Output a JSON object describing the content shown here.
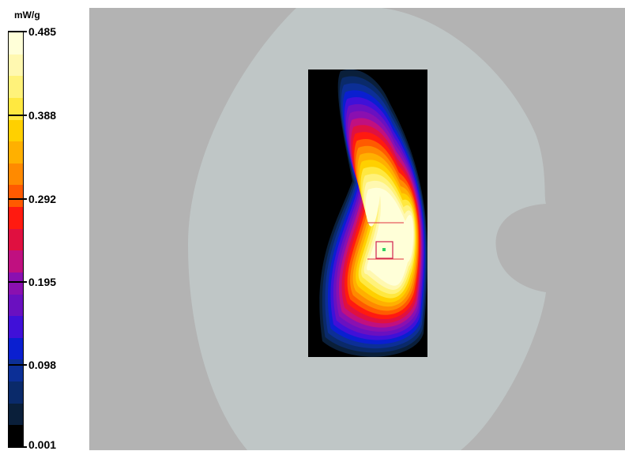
{
  "chart_data": {
    "type": "heatmap",
    "unit": "mW/g",
    "colorbar_ticks": [
      "0.485",
      "0.388",
      "0.292",
      "0.195",
      "0.098",
      "0.001"
    ],
    "value_range": [
      0.001,
      0.485
    ],
    "colors": {
      "levels": [
        "#000000",
        "#0a1f3a",
        "#0a2a6a",
        "#0c2f96",
        "#0a1fd0",
        "#4010d8",
        "#6a10c0",
        "#8a10b0",
        "#c01080",
        "#e01040",
        "#ff1a10",
        "#ff5a00",
        "#ff8a00",
        "#ffb000",
        "#ffd000",
        "#ffe840",
        "#fff27a",
        "#fff8b0",
        "#ffffd8"
      ],
      "background": "#b3b3b3",
      "phantom": "#bfc6c6",
      "scan_area": "#000000"
    }
  }
}
